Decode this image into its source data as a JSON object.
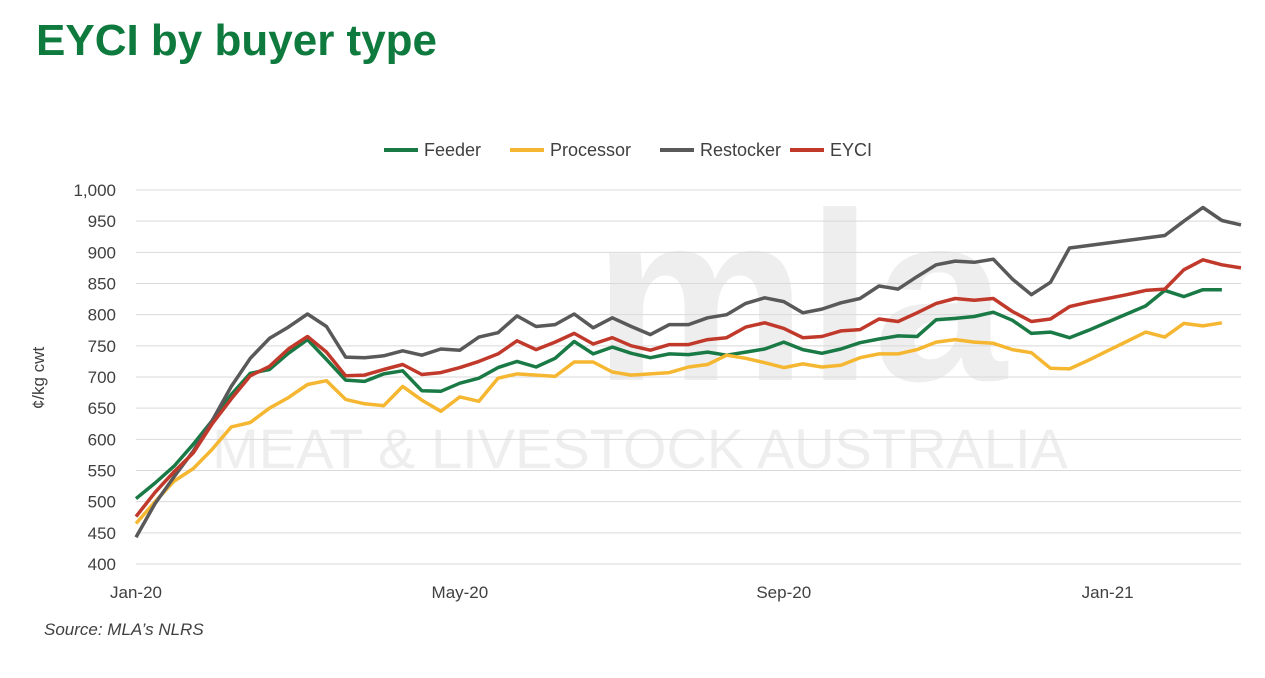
{
  "title": "EYCI by buyer type",
  "source": "Source: MLA’s NLRS",
  "watermark": {
    "logo": "mla",
    "text": "MEAT & LIVESTOCK AUSTRALIA"
  },
  "chart_data": {
    "type": "line",
    "title": "EYCI by buyer type",
    "xlabel": "",
    "ylabel": "¢/kg cwt",
    "ylim": [
      400,
      1000
    ],
    "yticks": [
      400,
      450,
      500,
      550,
      600,
      650,
      700,
      750,
      800,
      850,
      900,
      950,
      1000
    ],
    "yticklabels": [
      "400",
      "450",
      "500",
      "550",
      "600",
      "650",
      "700",
      "750",
      "800",
      "850",
      "900",
      "950",
      "1,000"
    ],
    "xticks": [
      "Jan-20",
      "May-20",
      "Sep-20",
      "Jan-21"
    ],
    "xtick_index": [
      0,
      17,
      34,
      51
    ],
    "grid": true,
    "legend": "top",
    "colors": {
      "Feeder": "#1a7a45",
      "Processor": "#f5b731",
      "Restocker": "#595959",
      "EYCI": "#c0392b"
    },
    "series": [
      {
        "name": "Feeder",
        "values": [
          505,
          530,
          557,
          592,
          630,
          672,
          706,
          712,
          738,
          760,
          728,
          695,
          693,
          705,
          710,
          678,
          677,
          690,
          698,
          715,
          725,
          716,
          730,
          757,
          737,
          748,
          738,
          731,
          737,
          736,
          740,
          735,
          740,
          745,
          756,
          744,
          738,
          745,
          755,
          761,
          766,
          765,
          792,
          794,
          797,
          804,
          791,
          770,
          772,
          763,
          775,
          788,
          801,
          814,
          839,
          829,
          840,
          840
        ]
      },
      {
        "name": "Processor",
        "values": [
          465,
          500,
          533,
          553,
          584,
          620,
          627,
          650,
          667,
          688,
          694,
          664,
          657,
          654,
          685,
          663,
          645,
          668,
          661,
          698,
          705,
          703,
          701,
          724,
          724,
          708,
          703,
          705,
          707,
          716,
          720,
          735,
          730,
          723,
          715,
          721,
          716,
          719,
          731,
          737,
          737,
          744,
          756,
          760,
          756,
          754,
          744,
          739,
          714,
          713,
          727,
          742,
          757,
          772,
          764,
          786,
          782,
          787
        ]
      },
      {
        "name": "Restocker",
        "values": [
          443,
          497,
          540,
          581,
          630,
          685,
          730,
          762,
          780,
          801,
          781,
          732,
          731,
          734,
          742,
          735,
          745,
          743,
          764,
          771,
          798,
          781,
          784,
          801,
          779,
          795,
          781,
          768,
          784,
          784,
          795,
          800,
          818,
          827,
          821,
          803,
          809,
          819,
          826,
          846,
          841,
          861,
          880,
          886,
          884,
          889,
          857,
          832,
          852,
          907,
          911,
          915,
          919,
          923,
          927,
          950,
          972,
          951,
          944
        ]
      },
      {
        "name": "EYCI",
        "values": [
          476,
          515,
          548,
          578,
          625,
          665,
          702,
          717,
          745,
          765,
          740,
          702,
          703,
          712,
          720,
          704,
          707,
          715,
          725,
          737,
          758,
          744,
          756,
          770,
          753,
          763,
          750,
          743,
          752,
          752,
          760,
          763,
          780,
          787,
          778,
          763,
          765,
          774,
          776,
          793,
          789,
          803,
          818,
          826,
          823,
          826,
          805,
          789,
          793,
          813,
          820,
          826,
          832,
          839,
          841,
          872,
          888,
          880,
          875
        ]
      }
    ]
  }
}
